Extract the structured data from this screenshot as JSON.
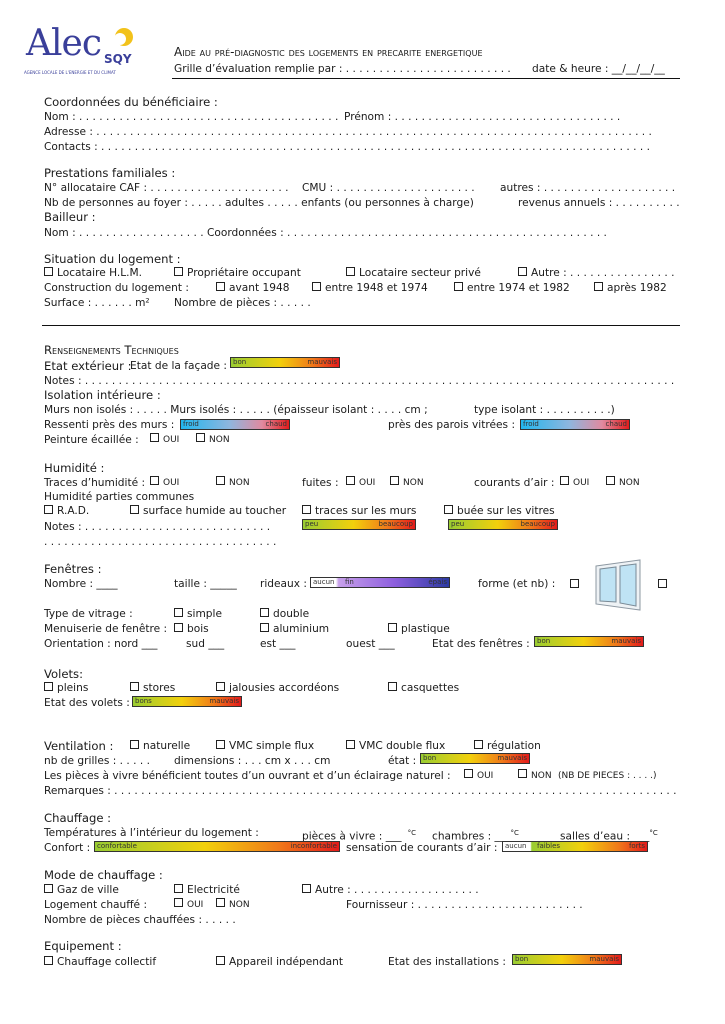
{
  "logo": {
    "main": "Alec",
    "sub": "SQY",
    "tagline": "AGENCE LOCALE DE L'ENERGIE ET DU CLIMAT"
  },
  "header": {
    "title": "Aide au pré-diagnostic des logements en precarite energetique",
    "grid": "Grille d’évaluation remplie par : . . . . . . . . . . . . . . . . . . . . . . . . .",
    "date": "date & heure : __/__/__/__"
  },
  "coord": {
    "title": "Coordonnées du bénéficiaire :",
    "nom": "Nom : . . . . . . . . . . . . . . . . . . . . . . . . . . . . . . . . . . . . . . .",
    "prenom": "Prénom : . . . . . . . . . . . . . . . . . . . . . . . . . . . . . . . . . .",
    "adresse": "Adresse : . . . . . . . . . . . . . . . . . . . . . . . . . . . . . . . . . . . . . . . . . . . . . . . . . . . . . . . . . . . . . . . . . . . . . . . . . . . . . . . . . . .",
    "contacts": "Contacts : . . . . . . . . . . . . . . . . . . . . . . . . . . . . . . . . . . . . . . . . . . . . . . . . . . . . . . . . . . . . . . . . . . . . . . . . . . . . . . . . . ."
  },
  "prest": {
    "title": "Prestations familiales :",
    "caf": "N° allocataire CAF : . . . . . . . . . . . . . . . . . . . . .",
    "cmu": "CMU : . . . . . . . . . . . . . . . . . . . . .",
    "autres": "autres : . . . . . . . . . . . . . . . . . . . .",
    "nb": "Nb de personnes au foyer : . . . . . adultes . . . . . enfants (ou personnes à charge)",
    "revenus": "revenus annuels : . . . . . . . . . .",
    "bailleur": "Bailleur :",
    "bnom": "Nom : . . . . . . . . . . . . . . . . . . . Coordonnées : . . . . . . . . . . . . . . . . . . . . . . . . . . . . . . . . . . . . . . . . . . . . . . . ."
  },
  "sit": {
    "title": "Situation du logement :",
    "opts1": [
      "Locataire H.L.M.",
      "Propriétaire occupant",
      "Locataire secteur privé",
      "Autre : . . . . . . . . . . . . . . . ."
    ],
    "constr": "Construction du logement :",
    "opts2": [
      "avant 1948",
      "entre 1948 et 1974",
      "entre 1974 et 1982",
      "après 1982"
    ],
    "surface": "Surface : . . . . . . m²",
    "pieces": "Nombre de pièces : . . . . ."
  },
  "rens": {
    "title": "Renseignements Techniques",
    "ext": "Etat extérieur :",
    "facade": "Etat de la façade :",
    "notes": "Notes : . . . . . . . . . . . . . . . . . . . . . . . . . . . . . . . . . . . . . . . . . . . . . . . . . . . . . . . . . . . . . . . . . . . . . . . . . . . . . . . . . . . . . . . .",
    "iso": "Isolation intérieure :",
    "murs": "Murs non isolés : . . . . .   Murs isolés : . . . . .   (épaisseur isolant : . . . . cm ;",
    "type": "type isolant : . . . . . . . . . .)",
    "ressenti": "Ressenti près des murs :",
    "vitrees": "près des parois vitrées :",
    "peinture": "Peinture écaillée :",
    "oui": "OUI",
    "non": "NON"
  },
  "hum": {
    "title": "Humidité :",
    "traces": "Traces d’humidité :",
    "fuites": "fuites :",
    "courants": "courants d’air :",
    "communes": "Humidité parties communes",
    "opts": [
      "R.A.D.",
      "surface humide au toucher",
      "traces sur les murs",
      "buée sur les vitres"
    ],
    "notes": "Notes : . . . . . . . . . . . . . . . . . . . . . . . . . . . .",
    "notes2": ". . . . . . . . . . . . . . . . . . . . . . . . . . . . . . . . . . ."
  },
  "fen": {
    "title": "Fenêtres :",
    "nombre": "Nombre : ____",
    "taille": "taille : _____",
    "rideaux": "rideaux :",
    "forme": "forme (et nb) :",
    "vitrage": "Type de vitrage :",
    "simple": "simple",
    "double": "double",
    "menu": "Menuiserie de fenêtre :",
    "bois": "bois",
    "alu": "aluminium",
    "plast": "plastique",
    "orient": "Orientation : nord ___",
    "sud": "sud ___",
    "est": "est ___",
    "ouest": "ouest ___",
    "etat": "Etat des fenêtres :"
  },
  "vol": {
    "title": "Volets:",
    "opts": [
      "pleins",
      "stores",
      "jalousies accordéons",
      "casquettes"
    ],
    "etat": "Etat des volets :"
  },
  "vent": {
    "title": "Ventilation :",
    "opts": [
      "naturelle",
      "VMC simple flux",
      "VMC double flux",
      "régulation"
    ],
    "grilles": "nb de grilles : . . . . .",
    "dim": "dimensions : . . . cm x . . . cm",
    "etat": "état :",
    "pieces": "Les pièces à vivre bénéficient toutes d’un ouvrant et d’un éclairage naturel :",
    "nbp": "(NB DE PIECES : . . . .)",
    "rem": "Remarques : . . . . . . . . . . . . . . . . . . . . . . . . . . . . . . . . . . . . . . . . . . . . . . . . . . . . . . . . . . . . . . . . . . . . . . . . . . . . . . . . . . . ."
  },
  "chauf": {
    "title": "Chauffage :",
    "temp": "Températures à l’intérieur du logement :",
    "vivre": "pièces à vivre : ___",
    "chambres": "chambres : ___",
    "salles": "salles d’eau : ___",
    "deg": "°C",
    "confort": "Confort :",
    "sensation": "sensation de courants d’air :"
  },
  "mode": {
    "title": "Mode de chauffage :",
    "opts": [
      "Gaz de ville",
      "Electricité",
      "Autre : . . . . . . . . . . . . . . . . . . ."
    ],
    "chauffe": "Logement chauffé :",
    "fourn": "Fournisseur : . . . . . . . . . . . . . . . . . . . . . . . . .",
    "nbp": "Nombre de pièces chauffées : . . . . ."
  },
  "equip": {
    "title": "Equipement :",
    "opts": [
      "Chauffage collectif",
      "Appareil indépendant"
    ],
    "etat": "Etat des installations :"
  },
  "scales": {
    "bon": "bon",
    "mauvais": "mauvais",
    "bons": "bons",
    "froid": "froid",
    "chaud": "chaud",
    "peu": "peu",
    "beaucoup": "beaucoup",
    "aucun": "aucun",
    "fin": "fin",
    "epais": "épais",
    "confortable": "confortable",
    "inconfortable": "inconfortable",
    "faibles": "faibles",
    "forts": "forts"
  }
}
